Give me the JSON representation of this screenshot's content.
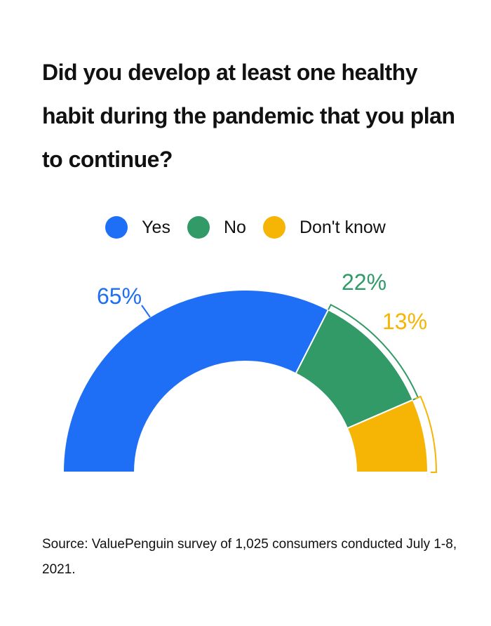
{
  "title": "Did you develop at least one healthy habit during the pandemic that you plan to continue?",
  "legend": [
    {
      "label": "Yes",
      "color": "#1e6ef6"
    },
    {
      "label": "No",
      "color": "#319a67"
    },
    {
      "label": "Don't know",
      "color": "#f6b404"
    }
  ],
  "chart_data": {
    "type": "pie",
    "variant": "half-donut",
    "title": "Did you develop at least one healthy habit during the pandemic that you plan to continue?",
    "categories": [
      "Yes",
      "No",
      "Don't know"
    ],
    "values": [
      65,
      22,
      13
    ],
    "labels": [
      "65%",
      "22%",
      "13%"
    ],
    "colors": [
      "#1e6ef6",
      "#319a67",
      "#f6b404"
    ],
    "legend_position": "top-center"
  },
  "source": "Source: ValuePenguin survey of 1,025 consumers conducted July 1-8, 2021."
}
